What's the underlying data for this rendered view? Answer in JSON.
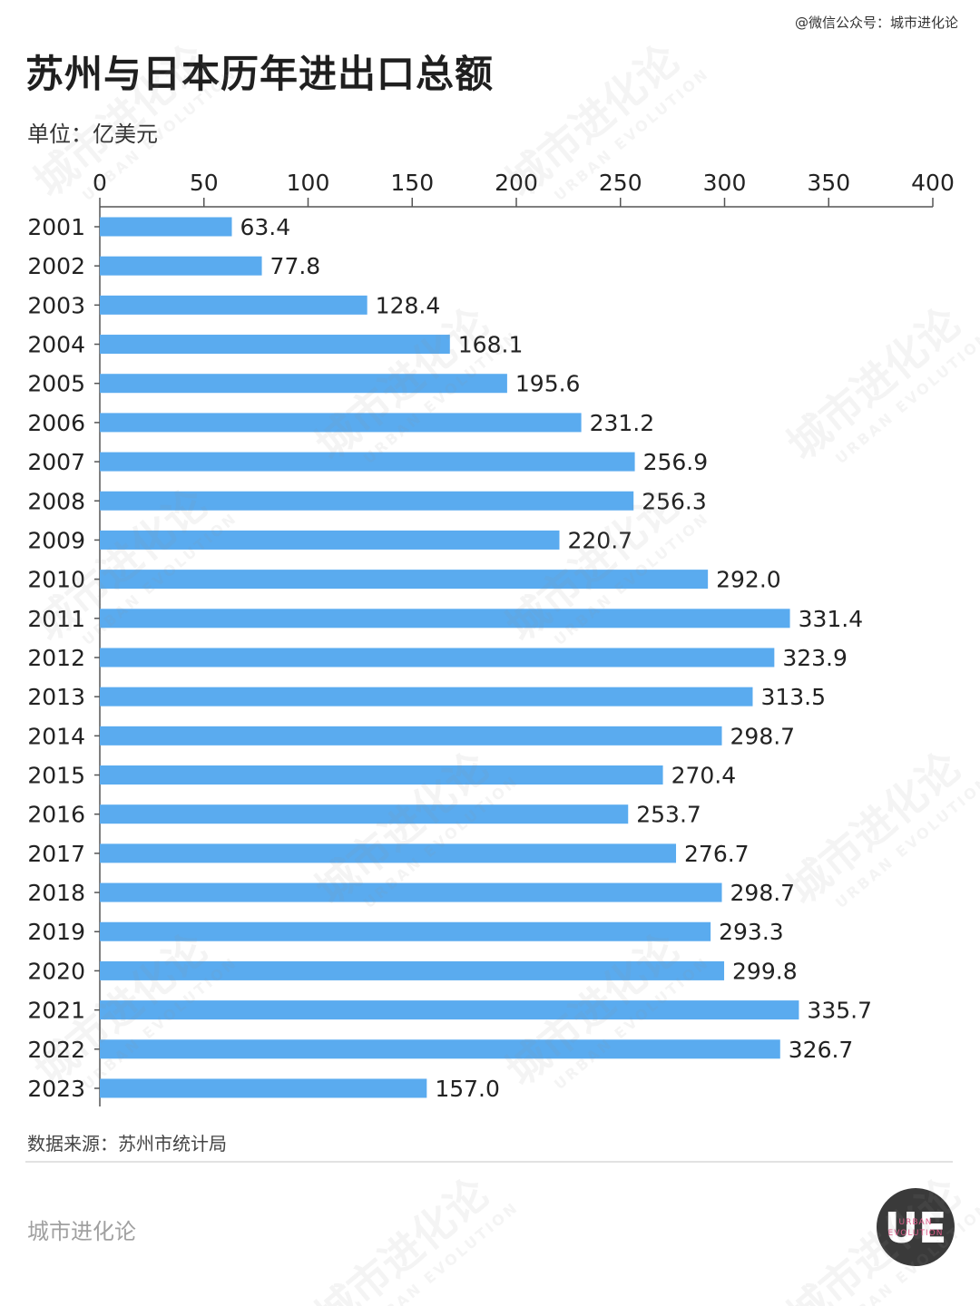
{
  "credit": "@微信公众号：城市进化论",
  "title": "苏州与日本历年进出口总额",
  "unit_label": "单位：亿美元",
  "source": "数据来源：苏州市统计局",
  "brand": "城市进化论",
  "logo": {
    "letters": "UE",
    "line1": "URBAN",
    "line2": "EVOLUTION"
  },
  "watermark": {
    "zh": "城市进化论",
    "en": "URBAN EVOLUTION"
  },
  "colors": {
    "bar": "#5aabef",
    "axis": "#555555",
    "text": "#222222"
  },
  "chart_data": {
    "type": "bar",
    "orientation": "horizontal",
    "categories": [
      "2001",
      "2002",
      "2003",
      "2004",
      "2005",
      "2006",
      "2007",
      "2008",
      "2009",
      "2010",
      "2011",
      "2012",
      "2013",
      "2014",
      "2015",
      "2016",
      "2017",
      "2018",
      "2019",
      "2020",
      "2021",
      "2022",
      "2023"
    ],
    "values": [
      63.4,
      77.8,
      128.4,
      168.1,
      195.6,
      231.2,
      256.9,
      256.3,
      220.7,
      292.0,
      331.4,
      323.9,
      313.5,
      298.7,
      270.4,
      253.7,
      276.7,
      298.7,
      293.3,
      299.8,
      335.7,
      326.7,
      157.0
    ],
    "value_labels": [
      "63.4",
      "77.8",
      "128.4",
      "168.1",
      "195.6",
      "231.2",
      "256.9",
      "256.3",
      "220.7",
      "292.0",
      "331.4",
      "323.9",
      "313.5",
      "298.7",
      "270.4",
      "253.7",
      "276.7",
      "298.7",
      "293.3",
      "299.8",
      "335.7",
      "326.7",
      "157.0"
    ],
    "xlim": [
      0,
      400
    ],
    "xticks": [
      0,
      50,
      100,
      150,
      200,
      250,
      300,
      350,
      400
    ],
    "xtick_labels": [
      "0",
      "50",
      "100",
      "150",
      "200",
      "250",
      "300",
      "350",
      "400"
    ],
    "axis_position": "top",
    "grid": false,
    "legend": false
  }
}
